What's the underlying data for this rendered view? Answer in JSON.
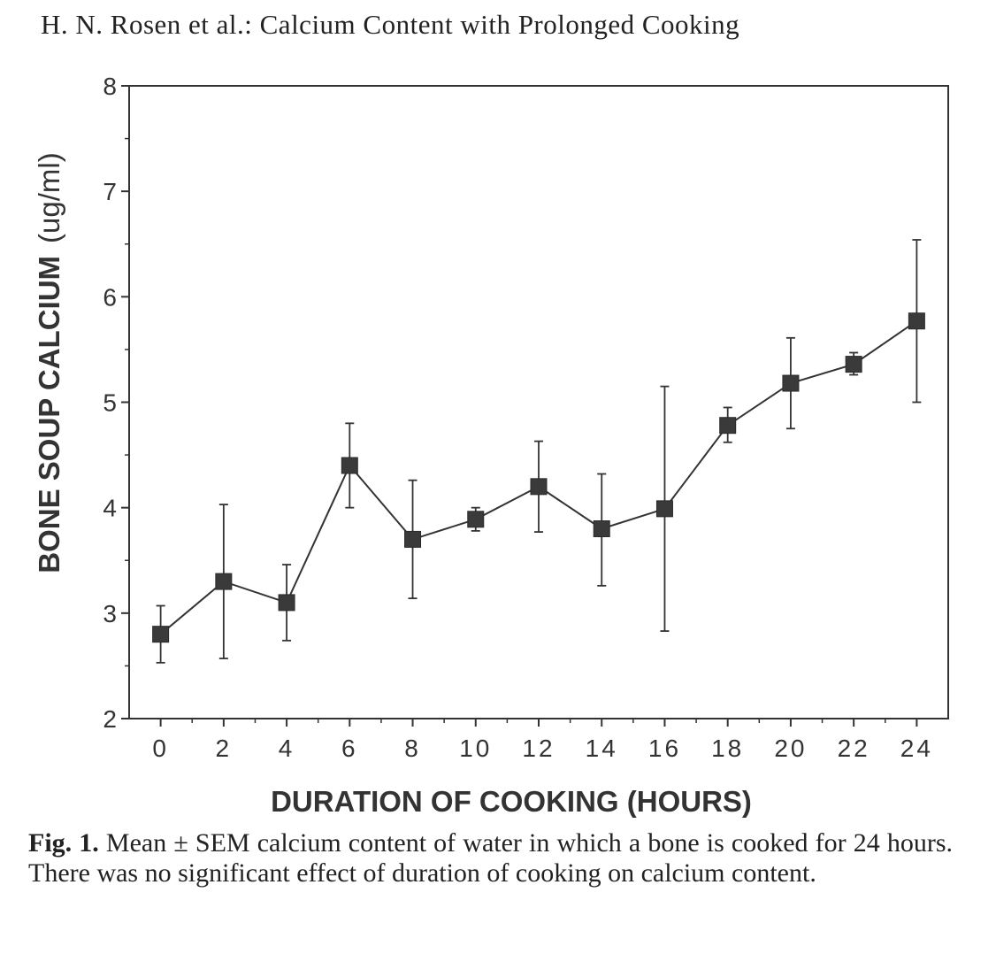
{
  "header": {
    "running_title": "H. N. Rosen et al.:  Calcium Content with Prolonged Cooking"
  },
  "chart_data": {
    "type": "line",
    "title": "",
    "xlabel": "DURATION OF COOKING (HOURS)",
    "ylabel_main": "BONE SOUP CALCIUM",
    "ylabel_unit": "(ug/ml)",
    "xlim": [
      -1,
      25
    ],
    "ylim": [
      2,
      8
    ],
    "x_ticks": [
      0,
      2,
      4,
      6,
      8,
      10,
      12,
      14,
      16,
      18,
      20,
      22,
      24
    ],
    "y_ticks": [
      2,
      3,
      4,
      5,
      6,
      7,
      8
    ],
    "markers": "filled-square",
    "error_bars": "Mean ± SEM",
    "series": [
      {
        "name": "Bone soup calcium",
        "points": [
          {
            "x": 0,
            "y": 2.8,
            "lo": 2.53,
            "hi": 3.07
          },
          {
            "x": 2,
            "y": 3.3,
            "lo": 2.57,
            "hi": 4.03
          },
          {
            "x": 4,
            "y": 3.1,
            "lo": 2.74,
            "hi": 3.46
          },
          {
            "x": 6,
            "y": 4.4,
            "lo": 4.0,
            "hi": 4.8
          },
          {
            "x": 8,
            "y": 3.7,
            "lo": 3.14,
            "hi": 4.26
          },
          {
            "x": 10,
            "y": 3.89,
            "lo": 3.78,
            "hi": 4.0
          },
          {
            "x": 12,
            "y": 4.2,
            "lo": 3.77,
            "hi": 4.63
          },
          {
            "x": 14,
            "y": 3.8,
            "lo": 3.26,
            "hi": 4.32
          },
          {
            "x": 16,
            "y": 3.99,
            "lo": 2.83,
            "hi": 5.15
          },
          {
            "x": 18,
            "y": 4.78,
            "lo": 4.62,
            "hi": 4.95
          },
          {
            "x": 20,
            "y": 5.18,
            "lo": 4.75,
            "hi": 5.61
          },
          {
            "x": 22,
            "y": 5.36,
            "lo": 5.26,
            "hi": 5.47
          },
          {
            "x": 24,
            "y": 5.77,
            "lo": 5.0,
            "hi": 6.54
          }
        ]
      }
    ]
  },
  "caption": {
    "label": "Fig. 1.",
    "text": "Mean ± SEM calcium content of water in which a bone is cooked for 24 hours. There was no significant effect of duration of cooking on calcium content."
  },
  "colors": {
    "ink": "#333333",
    "marker": "#3a3a3a",
    "paper": "#ffffff"
  }
}
